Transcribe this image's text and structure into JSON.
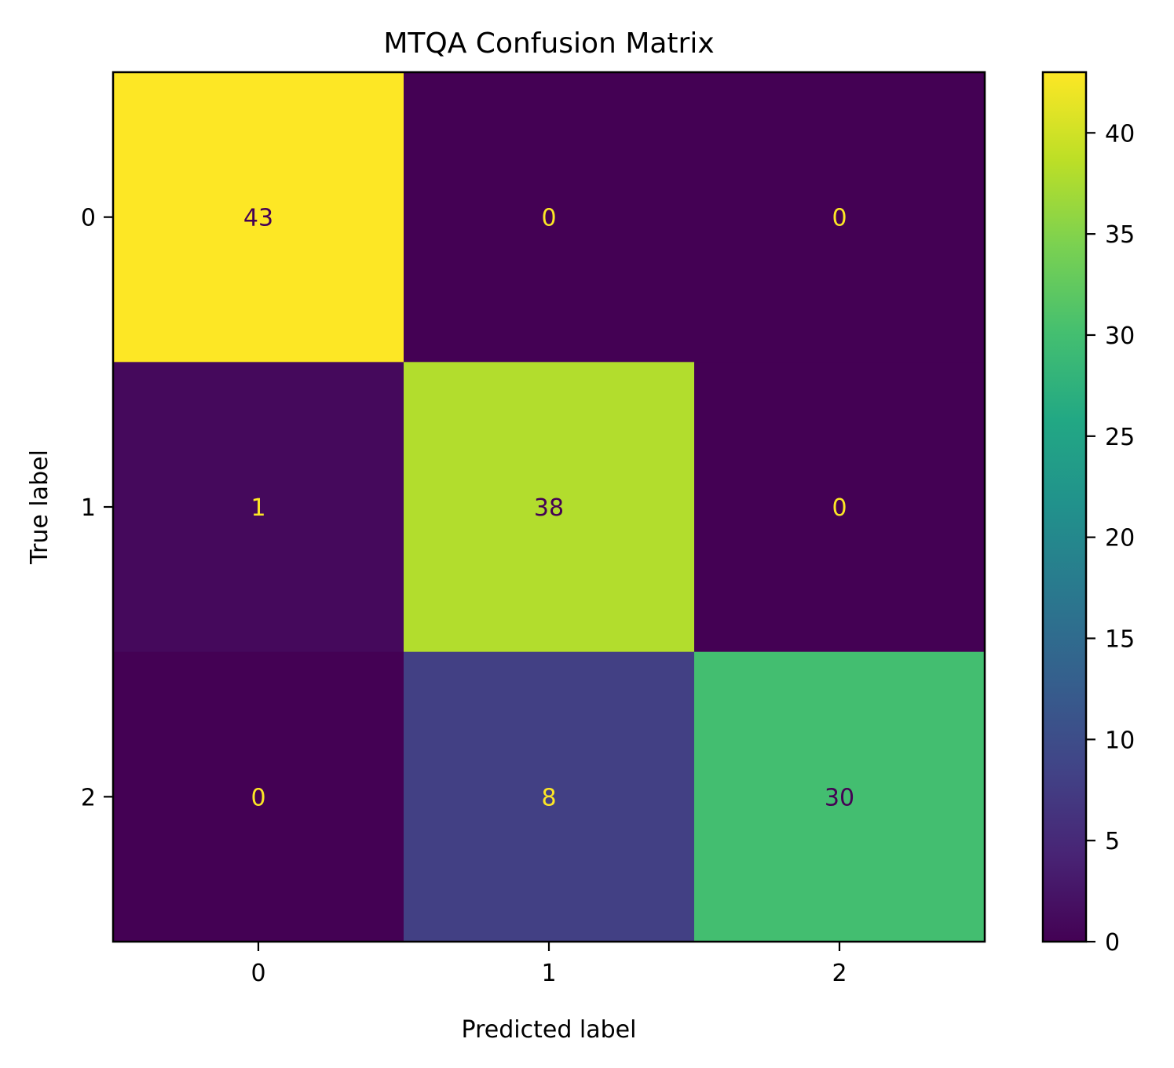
{
  "chart_data": {
    "type": "heatmap",
    "title": "MTQA Confusion Matrix",
    "xlabel": "Predicted label",
    "ylabel": "True label",
    "x_categories": [
      "0",
      "1",
      "2"
    ],
    "y_categories": [
      "0",
      "1",
      "2"
    ],
    "values": [
      [
        43,
        0,
        0
      ],
      [
        1,
        38,
        0
      ],
      [
        0,
        8,
        30
      ]
    ],
    "colormap": "viridis",
    "colorbar": {
      "range": [
        0,
        43
      ],
      "ticks": [
        0,
        5,
        10,
        15,
        20,
        25,
        30,
        35,
        40
      ],
      "tick_labels": [
        "0",
        "5",
        "10",
        "15",
        "20",
        "25",
        "30",
        "35",
        "40"
      ]
    },
    "text_colors": {
      "on_dark": "#fde725",
      "on_light": "#440154"
    }
  }
}
